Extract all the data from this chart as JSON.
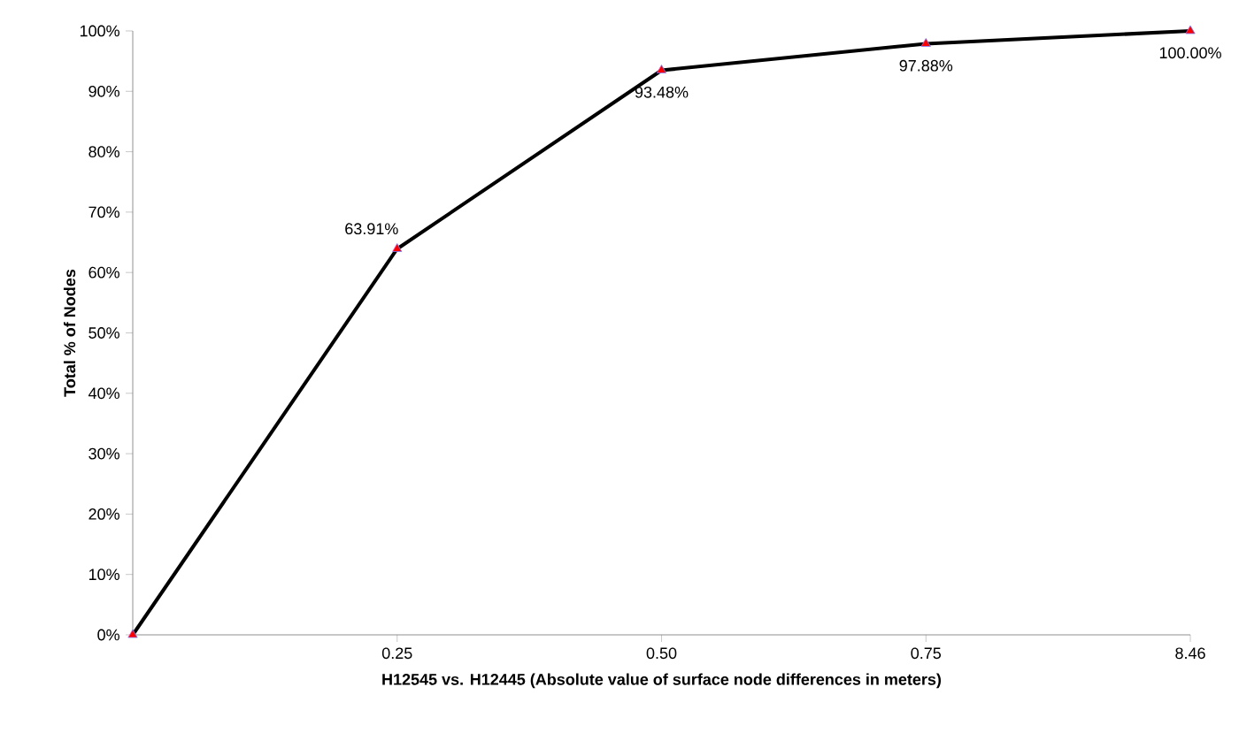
{
  "chart_data": {
    "type": "line",
    "xlabel": "H12545 vs. H12445  (Absolute value of surface node differences in meters)",
    "ylabel": "Total % of Nodes",
    "categories": [
      null,
      "0.25",
      "0.50",
      "0.75",
      "8.46"
    ],
    "series": [
      {
        "color": "#000000",
        "values": [
          0,
          63.91,
          93.48,
          97.88,
          100
        ],
        "value_labels": [
          null,
          "63.91%",
          "93.48%",
          "97.88%",
          "100.00%"
        ]
      }
    ],
    "ylim": [
      0,
      100
    ],
    "yticks": [
      {
        "value": 0,
        "label": "0%"
      },
      {
        "value": 10,
        "label": "10%"
      },
      {
        "value": 20,
        "label": "20%"
      },
      {
        "value": 30,
        "label": "30%"
      },
      {
        "value": 40,
        "label": "40%"
      },
      {
        "value": 50,
        "label": "50%"
      },
      {
        "value": 60,
        "label": "60%"
      },
      {
        "value": 70,
        "label": "70%"
      },
      {
        "value": 80,
        "label": "80%"
      },
      {
        "value": 90,
        "label": "90%"
      },
      {
        "value": 100,
        "label": "100%"
      }
    ],
    "marker": "triangle",
    "line_style": "solid"
  }
}
